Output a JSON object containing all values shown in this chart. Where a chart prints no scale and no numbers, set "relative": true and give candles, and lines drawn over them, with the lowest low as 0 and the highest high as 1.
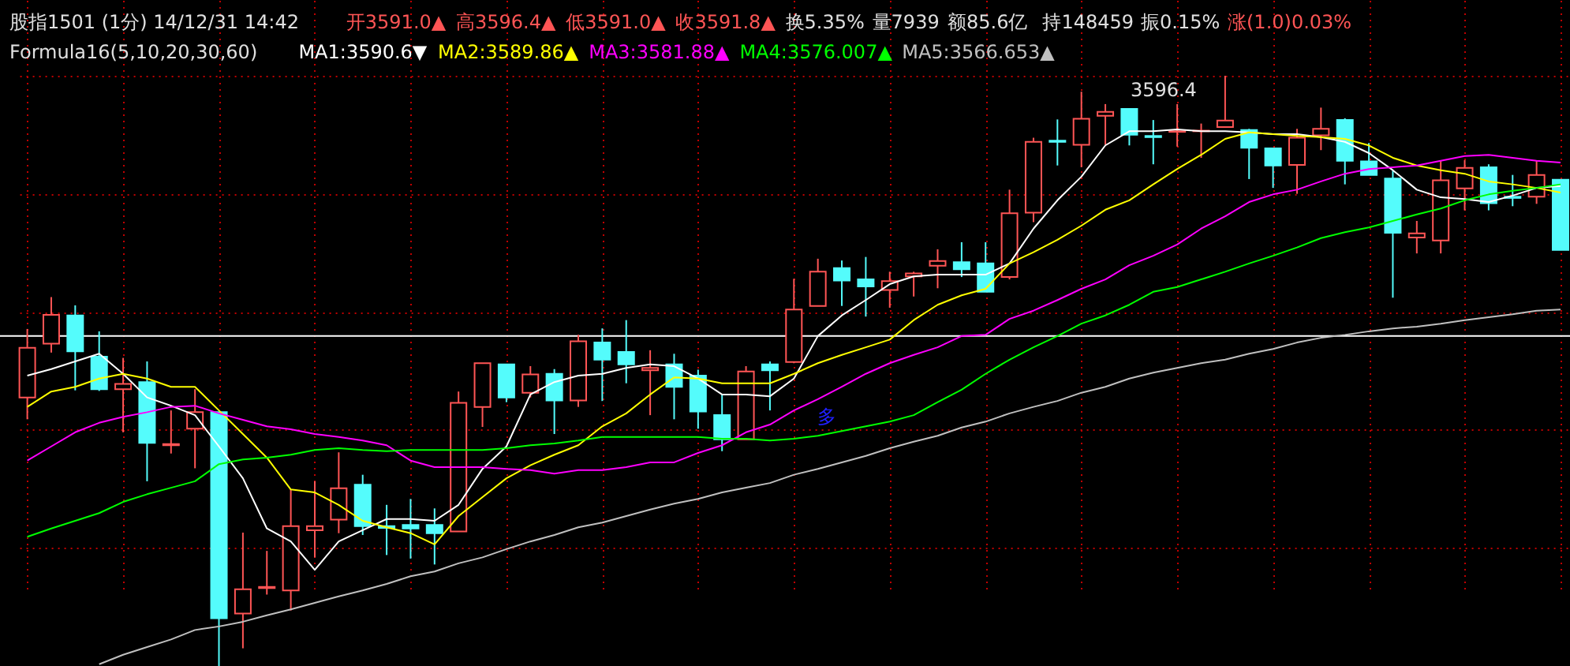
{
  "chart_data": {
    "type": "candlestick",
    "relative": true,
    "grid": true,
    "legend": "top left",
    "title": "股指1501 (1分) 14/12/31 14:42",
    "subtitle": "Formula16(5,10,20,30,60)",
    "annotations": [
      "开3591.0▲",
      "高3596.4▲",
      "低3591.0▲",
      "收3591.8▲",
      "换5.35%",
      "量7939",
      "额85.6亿",
      "持148459",
      "振0.15%",
      "涨(1.0)0.03%",
      "3596.4",
      "多"
    ],
    "categories": [
      null,
      null,
      null,
      null,
      null,
      null,
      null,
      null,
      null,
      null,
      null,
      null,
      null,
      null,
      null,
      null,
      null,
      null,
      null,
      null,
      null,
      null,
      null,
      null,
      null,
      null,
      null,
      null,
      null,
      null,
      null,
      null,
      null,
      null,
      null,
      null,
      null,
      null,
      null,
      null,
      null,
      null,
      null,
      null,
      null,
      null,
      null,
      null,
      null,
      null,
      null,
      null,
      null,
      null,
      null,
      null,
      null,
      null,
      null,
      null,
      null,
      null,
      null,
      null,
      null
    ],
    "ohlc": [
      [
        0.455,
        0.571,
        0.418,
        0.539
      ],
      [
        0.546,
        0.625,
        0.531,
        0.595
      ],
      [
        0.594,
        0.611,
        0.467,
        0.533
      ],
      [
        0.524,
        0.567,
        0.466,
        0.469
      ],
      [
        0.469,
        0.522,
        0.396,
        0.478
      ],
      [
        0.481,
        0.516,
        0.313,
        0.378
      ],
      [
        0.374,
        0.433,
        0.36,
        0.376
      ],
      [
        0.402,
        0.469,
        0.335,
        0.43
      ],
      [
        0.43,
        0.43,
        0,
        0.081
      ],
      [
        0.089,
        0.226,
        0.03,
        0.13
      ],
      [
        0.132,
        0.195,
        0.121,
        0.134
      ],
      [
        0.128,
        0.299,
        0.094,
        0.237
      ],
      [
        0.23,
        0.313,
        0.184,
        0.237
      ],
      [
        0.248,
        0.362,
        0.225,
        0.301
      ],
      [
        0.307,
        0.324,
        0.222,
        0.237
      ],
      [
        0.237,
        0.273,
        0.188,
        0.234
      ],
      [
        0.239,
        0.283,
        0.182,
        0.233
      ],
      [
        0.239,
        0.267,
        0.172,
        0.225
      ],
      [
        0.228,
        0.465,
        0.228,
        0.446
      ],
      [
        0.439,
        0.513,
        0.405,
        0.513
      ],
      [
        0.511,
        0.511,
        0.447,
        0.455
      ],
      [
        0.463,
        0.508,
        0.455,
        0.494
      ],
      [
        0.495,
        0.503,
        0.393,
        0.45
      ],
      [
        0.45,
        0.561,
        0.439,
        0.55
      ],
      [
        0.548,
        0.572,
        0.449,
        0.519
      ],
      [
        0.532,
        0.586,
        0.479,
        0.511
      ],
      [
        0.501,
        0.535,
        0.425,
        0.505
      ],
      [
        0.511,
        0.529,
        0.418,
        0.473
      ],
      [
        0.492,
        0.502,
        0.402,
        0.431
      ],
      [
        0.425,
        0.46,
        0.364,
        0.384
      ],
      [
        0.384,
        0.508,
        0.384,
        0.499
      ],
      [
        0.511,
        0.516,
        0.433,
        0.501
      ],
      [
        0.515,
        0.656,
        0.513,
        0.604
      ],
      [
        0.61,
        0.69,
        0.61,
        0.668
      ],
      [
        0.674,
        0.687,
        0.61,
        0.653
      ],
      [
        0.655,
        0.693,
        0.592,
        0.643
      ],
      [
        0.637,
        0.668,
        0.607,
        0.652
      ],
      [
        0.66,
        0.668,
        0.626,
        0.665
      ],
      [
        0.678,
        0.706,
        0.64,
        0.686
      ],
      [
        0.684,
        0.718,
        0.659,
        0.672
      ],
      [
        0.682,
        0.718,
        0.634,
        0.634
      ],
      [
        0.659,
        0.807,
        0.655,
        0.767
      ],
      [
        0.768,
        0.895,
        0.752,
        0.888
      ],
      [
        0.89,
        0.926,
        0.848,
        0.888
      ],
      [
        0.883,
        0.973,
        0.845,
        0.927
      ],
      [
        0.932,
        0.952,
        0.883,
        0.939
      ],
      [
        0.944,
        0.944,
        0.882,
        0.9
      ],
      [
        0.898,
        0.925,
        0.85,
        0.896
      ],
      [
        0.905,
        0.952,
        0.88,
        0.906
      ],
      [
        0.906,
        0.919,
        0.861,
        0.907
      ],
      [
        0.913,
        1,
        0.913,
        0.924
      ],
      [
        0.908,
        0.91,
        0.825,
        0.878
      ],
      [
        0.877,
        0.877,
        0.81,
        0.848
      ],
      [
        0.849,
        0.91,
        0.8,
        0.895
      ],
      [
        0.899,
        0.946,
        0.874,
        0.91
      ],
      [
        0.925,
        0.928,
        0.816,
        0.856
      ],
      [
        0.855,
        0.886,
        0.832,
        0.832
      ],
      [
        0.826,
        0.839,
        0.624,
        0.734
      ],
      [
        0.726,
        0.754,
        0.699,
        0.733
      ],
      [
        0.721,
        0.856,
        0.699,
        0.823
      ],
      [
        0.809,
        0.857,
        0.772,
        0.844
      ],
      [
        0.845,
        0.85,
        0.772,
        0.784
      ],
      [
        0.795,
        0.832,
        0.779,
        0.793
      ],
      [
        0.795,
        0.856,
        0.783,
        0.832
      ],
      [
        0.824,
        0.824,
        0.705,
        0.705
      ]
    ],
    "series": [
      {
        "name": "MA1:3590.6▼",
        "type": "line",
        "color": "#ffffff",
        "values": [
          0.492,
          0.503,
          0.516,
          0.529,
          0.495,
          0.455,
          0.441,
          0.425,
          0.372,
          0.318,
          0.233,
          0.211,
          0.163,
          0.211,
          0.23,
          0.249,
          0.249,
          0.246,
          0.273,
          0.334,
          0.372,
          0.46,
          0.481,
          0.492,
          0.495,
          0.505,
          0.511,
          0.508,
          0.487,
          0.46,
          0.46,
          0.457,
          0.487,
          0.559,
          0.594,
          0.62,
          0.647,
          0.66,
          0.663,
          0.663,
          0.663,
          0.682,
          0.741,
          0.789,
          0.829,
          0.882,
          0.906,
          0.906,
          0.909,
          0.906,
          0.906,
          0.904,
          0.901,
          0.901,
          0.896,
          0.888,
          0.869,
          0.84,
          0.807,
          0.794,
          0.791,
          0.786,
          0.797,
          0.81,
          0.813
        ]
      },
      {
        "name": "MA2:3589.86▲",
        "type": "line",
        "color": "#ffff00",
        "values": [
          0.439,
          0.465,
          0.473,
          0.487,
          0.495,
          0.487,
          0.473,
          0.473,
          0.433,
          0.393,
          0.353,
          0.299,
          0.294,
          0.273,
          0.246,
          0.235,
          0.225,
          0.206,
          0.254,
          0.286,
          0.318,
          0.34,
          0.358,
          0.374,
          0.406,
          0.428,
          0.46,
          0.489,
          0.487,
          0.479,
          0.479,
          0.479,
          0.495,
          0.513,
          0.527,
          0.54,
          0.553,
          0.586,
          0.612,
          0.628,
          0.639,
          0.682,
          0.701,
          0.722,
          0.746,
          0.773,
          0.789,
          0.816,
          0.842,
          0.866,
          0.893,
          0.904,
          0.901,
          0.898,
          0.896,
          0.893,
          0.882,
          0.861,
          0.848,
          0.84,
          0.834,
          0.821,
          0.816,
          0.81,
          0.802
        ]
      },
      {
        "name": "MA3:3581.88▲",
        "type": "line",
        "color": "#ff00ff",
        "values": [
          0.348,
          0.372,
          0.396,
          0.412,
          0.422,
          0.43,
          0.439,
          0.441,
          0.428,
          0.417,
          0.406,
          0.401,
          0.393,
          0.388,
          0.382,
          0.374,
          0.348,
          0.337,
          0.337,
          0.337,
          0.334,
          0.332,
          0.326,
          0.332,
          0.332,
          0.337,
          0.345,
          0.345,
          0.361,
          0.374,
          0.396,
          0.409,
          0.433,
          0.452,
          0.473,
          0.495,
          0.513,
          0.527,
          0.54,
          0.559,
          0.561,
          0.588,
          0.602,
          0.62,
          0.639,
          0.655,
          0.679,
          0.695,
          0.714,
          0.741,
          0.762,
          0.786,
          0.799,
          0.807,
          0.821,
          0.834,
          0.842,
          0.845,
          0.848,
          0.856,
          0.864,
          0.866,
          0.861,
          0.856,
          0.853
        ]
      },
      {
        "name": "MA4:3576.007▲",
        "type": "line",
        "color": "#00ff00",
        "values": [
          0.219,
          0.233,
          0.246,
          0.259,
          0.278,
          0.291,
          0.302,
          0.313,
          0.342,
          0.35,
          0.353,
          0.358,
          0.366,
          0.369,
          0.366,
          0.364,
          0.366,
          0.366,
          0.366,
          0.366,
          0.369,
          0.374,
          0.377,
          0.382,
          0.388,
          0.388,
          0.388,
          0.388,
          0.388,
          0.385,
          0.385,
          0.382,
          0.385,
          0.39,
          0.398,
          0.406,
          0.414,
          0.425,
          0.447,
          0.468,
          0.495,
          0.519,
          0.54,
          0.559,
          0.58,
          0.594,
          0.612,
          0.634,
          0.642,
          0.655,
          0.668,
          0.682,
          0.695,
          0.709,
          0.725,
          0.735,
          0.743,
          0.754,
          0.765,
          0.775,
          0.789,
          0.799,
          0.805,
          0.81,
          0.816
        ]
      },
      {
        "name": "MA5:3566.653▲",
        "type": "line",
        "color": "#c0c0c0",
        "values": [
          null,
          null,
          null,
          0.003,
          0.019,
          0.032,
          0.045,
          0.061,
          0.067,
          0.075,
          0.086,
          0.096,
          0.107,
          0.118,
          0.128,
          0.139,
          0.152,
          0.16,
          0.174,
          0.184,
          0.198,
          0.211,
          0.222,
          0.235,
          0.243,
          0.254,
          0.265,
          0.275,
          0.283,
          0.294,
          0.302,
          0.31,
          0.324,
          0.334,
          0.345,
          0.356,
          0.369,
          0.38,
          0.39,
          0.404,
          0.414,
          0.428,
          0.439,
          0.449,
          0.463,
          0.473,
          0.487,
          0.497,
          0.505,
          0.513,
          0.519,
          0.529,
          0.537,
          0.548,
          0.556,
          0.561,
          0.567,
          0.572,
          0.575,
          0.58,
          0.586,
          0.591,
          0.596,
          0.602,
          0.604
        ]
      }
    ],
    "ref_lines": [
      {
        "axis": "y",
        "value": 0.559,
        "color": "#ffffff"
      }
    ]
  }
}
